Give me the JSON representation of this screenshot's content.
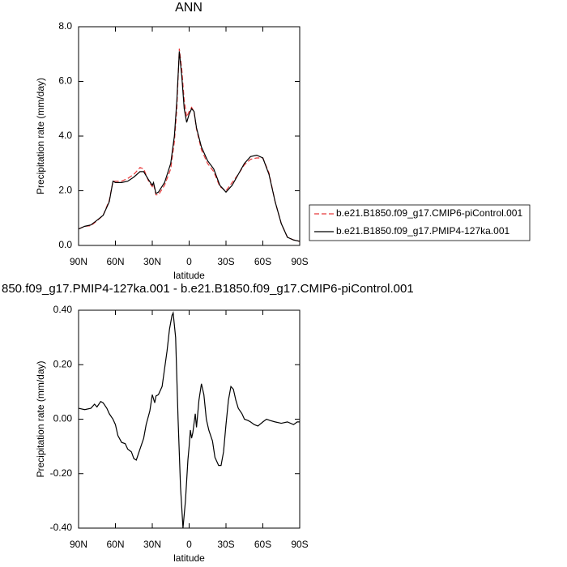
{
  "chart_data": [
    {
      "type": "line",
      "title": "ANN",
      "x_label": "latitude",
      "y_label": "Precipitation rate (mm/day)",
      "x": [
        90,
        85,
        80,
        75,
        70,
        65,
        62,
        60,
        55,
        50,
        45,
        40,
        37,
        33,
        30,
        29,
        27,
        25,
        20,
        15,
        12,
        10,
        8,
        6,
        4,
        2,
        0,
        -2,
        -4,
        -6,
        -10,
        -15,
        -20,
        -25,
        -30,
        -35,
        -40,
        -45,
        -50,
        -55,
        -60,
        -65,
        -70,
        -75,
        -80,
        -85,
        -90
      ],
      "series": [
        {
          "name": "b.e21.B1850.f09_g17.CMIP6-piControl.001",
          "color": "#e8393a",
          "style": "dashed",
          "values": [
            0.6,
            0.7,
            0.72,
            0.9,
            1.1,
            1.65,
            2.35,
            2.35,
            2.35,
            2.45,
            2.6,
            2.85,
            2.8,
            2.35,
            2.15,
            2.25,
            1.85,
            1.85,
            2.2,
            2.8,
            3.8,
            5.0,
            7.2,
            6.45,
            5.3,
            4.7,
            4.9,
            5.05,
            4.9,
            4.25,
            3.5,
            3.0,
            2.7,
            2.15,
            2.0,
            2.3,
            2.6,
            2.95,
            3.15,
            3.2,
            3.2,
            2.65,
            1.6,
            0.8,
            0.3,
            0.2,
            0.15
          ]
        },
        {
          "name": "b.e21.B1850.f09_g17.PMIP4-127ka.001",
          "color": "#000000",
          "style": "solid",
          "values": [
            0.6,
            0.7,
            0.75,
            0.92,
            1.1,
            1.6,
            2.35,
            2.3,
            2.3,
            2.35,
            2.5,
            2.7,
            2.7,
            2.4,
            2.2,
            2.3,
            1.9,
            1.95,
            2.3,
            3.0,
            4.0,
            5.3,
            7.1,
            6.2,
            5.0,
            4.5,
            4.8,
            5.0,
            4.9,
            4.3,
            3.6,
            3.1,
            2.8,
            2.2,
            1.95,
            2.2,
            2.6,
            3.0,
            3.25,
            3.3,
            3.2,
            2.6,
            1.6,
            0.8,
            0.3,
            0.2,
            0.15
          ]
        }
      ],
      "xlim": [
        90,
        -90
      ],
      "xticks": [
        {
          "value": 90,
          "label": "90N"
        },
        {
          "value": 60,
          "label": "60N"
        },
        {
          "value": 30,
          "label": "30N"
        },
        0,
        {
          "value": -30,
          "label": "30S"
        },
        {
          "value": -60,
          "label": "60S"
        },
        {
          "value": -90,
          "label": "90S"
        }
      ],
      "ylim": [
        0,
        8
      ],
      "yticks": [
        {
          "value": 0,
          "label": "0.0"
        },
        {
          "value": 2,
          "label": "2.0"
        },
        {
          "value": 4,
          "label": "4.0"
        },
        {
          "value": 6,
          "label": "6.0"
        },
        {
          "value": 8,
          "label": "8.0"
        }
      ],
      "legend": "right"
    },
    {
      "type": "line",
      "title": "850.f09_g17.PMIP4-127ka.001 - b.e21.B1850.f09_g17.CMIP6-piControl.001",
      "x_label": "latitude",
      "y_label": "Precipitation rate (mm/day)",
      "x": [
        90,
        85,
        80,
        77,
        75,
        72,
        70,
        67,
        65,
        62,
        60,
        58,
        55,
        52,
        50,
        47,
        45,
        43,
        40,
        37,
        35,
        32,
        30,
        28,
        27,
        25,
        22,
        18,
        16,
        14,
        13,
        11,
        9,
        7,
        5,
        3,
        1,
        0,
        -1,
        -2,
        -3,
        -5,
        -6,
        -8,
        -10,
        -12,
        -14,
        -16,
        -19,
        -21,
        -24,
        -26,
        -28,
        -30,
        -32,
        -34,
        -36,
        -38,
        -40,
        -43,
        -45,
        -48,
        -50,
        -53,
        -56,
        -60,
        -63,
        -66,
        -70,
        -75,
        -80,
        -85,
        -88,
        -90
      ],
      "series": [
        {
          "color": "#000000",
          "style": "solid",
          "values": [
            0.04,
            0.035,
            0.04,
            0.055,
            0.045,
            0.065,
            0.06,
            0.04,
            0.02,
            0.0,
            -0.02,
            -0.06,
            -0.085,
            -0.09,
            -0.11,
            -0.12,
            -0.145,
            -0.15,
            -0.11,
            -0.07,
            -0.02,
            0.03,
            0.09,
            0.06,
            0.085,
            0.09,
            0.12,
            0.25,
            0.33,
            0.38,
            0.39,
            0.3,
            0.0,
            -0.25,
            -0.4,
            -0.3,
            -0.15,
            -0.1,
            -0.04,
            -0.07,
            -0.05,
            0.02,
            -0.03,
            0.07,
            0.13,
            0.09,
            0.0,
            -0.04,
            -0.08,
            -0.14,
            -0.17,
            -0.17,
            -0.12,
            -0.02,
            0.07,
            0.12,
            0.11,
            0.07,
            0.04,
            0.02,
            0.0,
            -0.005,
            -0.01,
            -0.02,
            -0.025,
            -0.01,
            0.0,
            -0.005,
            -0.01,
            -0.015,
            -0.01,
            -0.02,
            -0.01,
            -0.01
          ]
        }
      ],
      "xlim": [
        90,
        -90
      ],
      "xticks": [
        {
          "value": 90,
          "label": "90N"
        },
        {
          "value": 60,
          "label": "60N"
        },
        {
          "value": 30,
          "label": "30N"
        },
        0,
        {
          "value": -30,
          "label": "30S"
        },
        {
          "value": -60,
          "label": "60S"
        },
        {
          "value": -90,
          "label": "90S"
        }
      ],
      "ylim": [
        -0.4,
        0.4
      ],
      "yticks": [
        {
          "value": -0.4,
          "label": "-0.40"
        },
        {
          "value": -0.2,
          "label": "-0.20"
        },
        {
          "value": 0,
          "label": "0.00"
        },
        {
          "value": 0.2,
          "label": "0.20"
        },
        {
          "value": 0.4,
          "label": "0.40"
        }
      ]
    }
  ]
}
